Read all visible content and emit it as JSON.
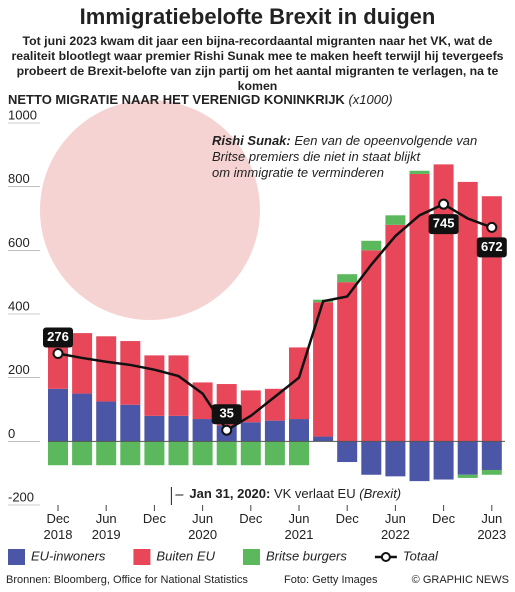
{
  "chart_data": {
    "type": "stacked_bar_line",
    "title": "Immigratiebelofte Brexit in duigen",
    "subtitle": [
      "Tot juni 2023 kwam dit jaar een bijna-recordaantal migranten naar het VK, wat de",
      "realiteit blootlegt waar premier Rishi Sunak mee te maken heeft terwijl hij tevergeefs",
      "probeert de Brexit-belofte van zijn partij om het aantal migranten te verlagen, na te komen"
    ],
    "y_axis_title": "NETTO MIGRATIE NAAR HET VERENIGD KONINKRIJK",
    "y_axis_unit": "(x1000)",
    "categories": [
      "Dec 2018",
      null,
      "Jun 2019",
      null,
      "Dec",
      null,
      "Jun 2020",
      null,
      "Dec",
      null,
      "Jun 2021",
      null,
      "Dec",
      null,
      "Jun 2022",
      null,
      "Dec",
      null,
      "Jun 2023"
    ],
    "series": [
      {
        "name": "EU-inwoners",
        "color": "#4b56a6",
        "values": [
          165,
          150,
          125,
          115,
          80,
          80,
          70,
          50,
          60,
          65,
          70,
          15,
          -65,
          -105,
          -110,
          -125,
          -120,
          -105,
          -90
        ]
      },
      {
        "name": "Buiten EU",
        "color": "#e8475a",
        "values": [
          175,
          190,
          205,
          200,
          190,
          190,
          115,
          130,
          100,
          100,
          225,
          422,
          500,
          600,
          680,
          840,
          870,
          815,
          770
        ]
      },
      {
        "name": "Britse burgers",
        "color": "#5cb85c",
        "values": [
          -75,
          -75,
          -75,
          -75,
          -75,
          -75,
          -75,
          -75,
          -75,
          -75,
          -75,
          8,
          25,
          30,
          30,
          10,
          0,
          -10,
          -15
        ]
      },
      {
        "name": "Totaal",
        "color": "#111111",
        "type": "line",
        "values": [
          276,
          262,
          250,
          240,
          225,
          205,
          150,
          35,
          80,
          140,
          200,
          440,
          455,
          555,
          645,
          710,
          745,
          700,
          672
        ],
        "labels_at": [
          0,
          7,
          16,
          18
        ]
      }
    ],
    "ylim": [
      -200,
      1000
    ],
    "yticks": [
      -200,
      0,
      200,
      400,
      600,
      800,
      1000
    ],
    "grid": false,
    "annotations": [
      {
        "name": "Rishi Sunak:",
        "text": [
          "Een van de opeenvolgende van",
          "Britse premiers die niet in staat blijkt",
          "om immigratie te verminderen"
        ]
      },
      {
        "date": "Jan 31, 2020:",
        "text": "VK verlaat EU",
        "note": "(Brexit)"
      }
    ],
    "sources": "Bronnen: Bloomberg, Office for National Statistics",
    "photo": "Foto: Getty Images",
    "copyright": "© GRAPHIC NEWS"
  }
}
